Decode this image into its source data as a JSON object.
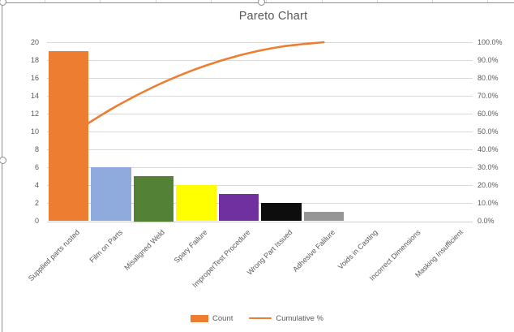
{
  "window": {
    "selection_state": "chart-selected"
  },
  "chart_data": {
    "type": "bar",
    "subtype": "pareto-combo",
    "title": "Pareto Chart",
    "categories": [
      "Supplied parts rusted",
      "Film on Parts",
      "Misaligned Weld",
      "Spary Failure",
      "ImproperTest Procedure",
      "Wrong Part Issued",
      "Adhesive Falilure",
      "Voids in Casting",
      "Incorrect Dimensions",
      "Masking Insufficient"
    ],
    "series": [
      {
        "name": "Count",
        "type": "bar",
        "values": [
          19,
          6,
          5,
          4,
          3,
          2,
          1,
          0,
          0,
          0
        ],
        "bar_colors": [
          "#ED7D31",
          "#8FAADC",
          "#538135",
          "#FFFF00",
          "#7030A0",
          "#0D0D0D",
          "#969696",
          "#ED7D31",
          "#ED7D31",
          "#ED7D31"
        ]
      },
      {
        "name": "Cumulative %",
        "type": "line",
        "smooth": true,
        "color": "#ED7D31",
        "values": [
          47.5,
          62.5,
          75.0,
          85.0,
          92.5,
          97.5,
          100.0,
          null,
          null,
          null
        ]
      }
    ],
    "axes": {
      "left": {
        "min": 0,
        "max": 20,
        "step": 2,
        "tick_labels": [
          "0",
          "2",
          "4",
          "6",
          "8",
          "10",
          "12",
          "14",
          "16",
          "18",
          "20"
        ]
      },
      "right": {
        "min": 0,
        "max": 100,
        "step": 10,
        "tick_labels": [
          "0.0%",
          "10.0%",
          "20.0%",
          "30.0%",
          "40.0%",
          "50.0%",
          "60.0%",
          "70.0%",
          "80.0%",
          "90.0%",
          "100.0%"
        ]
      }
    },
    "grid": true,
    "legend_position": "bottom",
    "text_color": "#595959",
    "gridline_color": "#D9D9D9"
  }
}
